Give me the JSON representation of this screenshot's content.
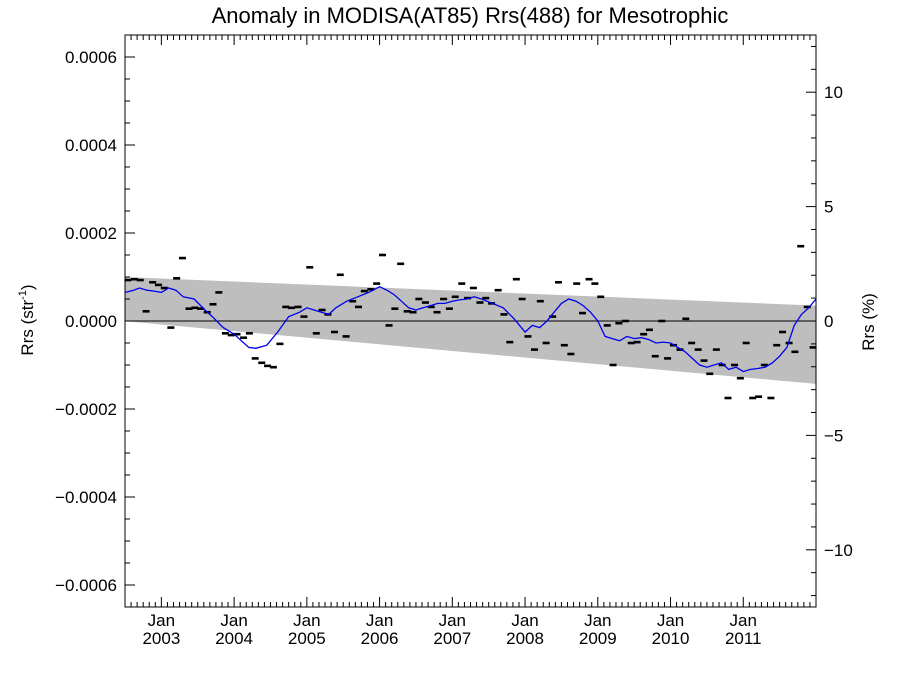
{
  "chart_data": {
    "type": "scatter",
    "title": "Anomaly in MODISA(AT85) Rrs(488) for Mesotrophic",
    "ylabel": {
      "base": "Rrs (str",
      "sup": "-1",
      "close": ")"
    },
    "ylabel_right": "Rrs (%)",
    "x_unit": "decimal year",
    "xlim": [
      2002.5,
      2012.0
    ],
    "ylim": [
      -0.00065,
      0.00065
    ],
    "ylim_right": [
      -12.5,
      12.5
    ],
    "y_ticks": [
      {
        "value": 0.0006,
        "label": "0.0006"
      },
      {
        "value": 0.0004,
        "label": "0.0004"
      },
      {
        "value": 0.0002,
        "label": "0.0002"
      },
      {
        "value": 0.0,
        "label": "0.0000"
      },
      {
        "value": -0.0002,
        "label": "−0.0002"
      },
      {
        "value": -0.0004,
        "label": "−0.0004"
      },
      {
        "value": -0.0006,
        "label": "−0.0006"
      }
    ],
    "y_ticks_right": [
      {
        "value": 10,
        "label": "10"
      },
      {
        "value": 5,
        "label": "5"
      },
      {
        "value": 0,
        "label": "0"
      },
      {
        "value": -5,
        "label": "−5"
      },
      {
        "value": -10,
        "label": "−10"
      }
    ],
    "x_ticks": [
      {
        "value": 2003.0,
        "line1": "Jan",
        "line2": "2003"
      },
      {
        "value": 2004.0,
        "line1": "Jan",
        "line2": "2004"
      },
      {
        "value": 2005.0,
        "line1": "Jan",
        "line2": "2005"
      },
      {
        "value": 2006.0,
        "line1": "Jan",
        "line2": "2006"
      },
      {
        "value": 2007.0,
        "line1": "Jan",
        "line2": "2007"
      },
      {
        "value": 2008.0,
        "line1": "Jan",
        "line2": "2008"
      },
      {
        "value": 2009.0,
        "line1": "Jan",
        "line2": "2009"
      },
      {
        "value": 2010.0,
        "line1": "Jan",
        "line2": "2010"
      },
      {
        "value": 2011.0,
        "line1": "Jan",
        "line2": "2011"
      }
    ],
    "band": {
      "x": [
        2002.5,
        2012.0
      ],
      "upper": [
        0.0001,
        3.5e-05
      ],
      "lower": [
        -5e-07,
        -0.000143
      ],
      "color": "#bebebe"
    },
    "zero_line": 0.0,
    "monthly_anomaly": {
      "x": [
        2002.54,
        2002.63,
        2002.71,
        2002.79,
        2002.88,
        2002.96,
        2003.04,
        2003.13,
        2003.21,
        2003.29,
        2003.38,
        2003.46,
        2003.54,
        2003.63,
        2003.71,
        2003.79,
        2003.88,
        2003.96,
        2004.04,
        2004.13,
        2004.21,
        2004.29,
        2004.38,
        2004.46,
        2004.54,
        2004.63,
        2004.71,
        2004.79,
        2004.88,
        2004.96,
        2005.04,
        2005.13,
        2005.21,
        2005.29,
        2005.38,
        2005.46,
        2005.54,
        2005.63,
        2005.71,
        2005.79,
        2005.88,
        2005.96,
        2006.04,
        2006.13,
        2006.21,
        2006.29,
        2006.38,
        2006.46,
        2006.54,
        2006.63,
        2006.71,
        2006.79,
        2006.88,
        2006.96,
        2007.04,
        2007.13,
        2007.21,
        2007.29,
        2007.38,
        2007.46,
        2007.54,
        2007.63,
        2007.71,
        2007.79,
        2007.88,
        2007.96,
        2008.04,
        2008.13,
        2008.21,
        2008.29,
        2008.38,
        2008.46,
        2008.54,
        2008.63,
        2008.71,
        2008.79,
        2008.88,
        2008.96,
        2009.04,
        2009.13,
        2009.21,
        2009.29,
        2009.38,
        2009.46,
        2009.54,
        2009.63,
        2009.71,
        2009.79,
        2009.88,
        2009.96,
        2010.04,
        2010.13,
        2010.21,
        2010.29,
        2010.38,
        2010.46,
        2010.54,
        2010.63,
        2010.71,
        2010.79,
        2010.88,
        2010.96,
        2011.04,
        2011.13,
        2011.21,
        2011.29,
        2011.38,
        2011.46,
        2011.54,
        2011.63,
        2011.71,
        2011.79,
        2011.88,
        2011.96
      ],
      "y": [
        9.3e-05,
        9.5e-05,
        9.3e-05,
        2.2e-05,
        8.8e-05,
        8.2e-05,
        7.5e-05,
        -1.5e-05,
        9.7e-05,
        0.000143,
        2.8e-05,
        3e-05,
        2.8e-05,
        2e-05,
        3.8e-05,
        6.5e-05,
        -2.8e-05,
        -3.2e-05,
        -3e-05,
        -3.8e-05,
        -2.8e-05,
        -8.5e-05,
        -9.5e-05,
        -0.000102,
        -0.000105,
        -5.2e-05,
        3.2e-05,
        3e-05,
        3.2e-05,
        1e-05,
        0.000122,
        -2.8e-05,
        2.5e-05,
        1.5e-05,
        -2.5e-05,
        0.000105,
        -3.5e-05,
        4.5e-05,
        3.2e-05,
        6.8e-05,
        7.2e-05,
        8.5e-05,
        0.00015,
        -1e-05,
        2.8e-05,
        0.00013,
        2.2e-05,
        2e-05,
        5e-05,
        4.2e-05,
        3.2e-05,
        2e-05,
        5e-05,
        2.8e-05,
        5.5e-05,
        8.5e-05,
        5.2e-05,
        7.5e-05,
        4.2e-05,
        5.2e-05,
        4e-05,
        7e-05,
        1.5e-05,
        -4.8e-05,
        9.5e-05,
        5e-05,
        -3.5e-05,
        -6.5e-05,
        4.5e-05,
        -5e-05,
        1e-05,
        8.8e-05,
        -5.5e-05,
        -7.5e-05,
        8.5e-05,
        1.8e-05,
        9.5e-05,
        8.5e-05,
        5.5e-05,
        -1e-05,
        -0.0001,
        -5e-06,
        0.0,
        -5e-05,
        -4.8e-05,
        -3e-05,
        -2e-05,
        -8e-05,
        0.0,
        -8.5e-05,
        -5.5e-05,
        -6.5e-05,
        5e-06,
        -5e-05,
        -6.5e-05,
        -9e-05,
        -0.00012,
        -6.5e-05,
        -0.0001,
        -0.000175,
        -0.0001,
        -0.00013,
        -5e-05,
        -0.000175,
        -0.000172,
        -0.0001,
        -0.000175,
        -5.5e-05,
        -2.5e-05,
        -5e-05,
        -7e-05,
        0.00017,
        3.2e-05,
        -6e-05
      ]
    },
    "running_mean": {
      "color": "#0000ee",
      "x": [
        2002.5,
        2002.62,
        2002.7,
        2002.8,
        2002.9,
        2003.0,
        2003.1,
        2003.2,
        2003.3,
        2003.45,
        2003.6,
        2003.7,
        2003.85,
        2004.0,
        2004.1,
        2004.2,
        2004.3,
        2004.45,
        2004.6,
        2004.75,
        2004.9,
        2005.0,
        2005.1,
        2005.2,
        2005.3,
        2005.4,
        2005.55,
        2005.7,
        2005.85,
        2006.0,
        2006.1,
        2006.2,
        2006.3,
        2006.4,
        2006.5,
        2006.6,
        2006.7,
        2006.8,
        2006.9,
        2007.0,
        2007.1,
        2007.2,
        2007.3,
        2007.4,
        2007.55,
        2007.7,
        2007.85,
        2008.0,
        2008.1,
        2008.2,
        2008.3,
        2008.4,
        2008.5,
        2008.6,
        2008.7,
        2008.8,
        2008.9,
        2009.0,
        2009.1,
        2009.2,
        2009.3,
        2009.4,
        2009.5,
        2009.6,
        2009.7,
        2009.8,
        2009.9,
        2010.0,
        2010.1,
        2010.2,
        2010.3,
        2010.4,
        2010.5,
        2010.6,
        2010.7,
        2010.8,
        2010.9,
        2011.0,
        2011.1,
        2011.2,
        2011.3,
        2011.4,
        2011.5,
        2011.6,
        2011.7,
        2011.8,
        2011.9,
        2012.0
      ],
      "y": [
        6.5e-05,
        7e-05,
        7.5e-05,
        7e-05,
        6.8e-05,
        6.5e-05,
        7.5e-05,
        7e-05,
        5.5e-05,
        5e-05,
        2.5e-05,
        1e-05,
        -1.5e-05,
        -3e-05,
        -4.5e-05,
        -6e-05,
        -6.2e-05,
        -5.5e-05,
        -2.5e-05,
        1e-05,
        2e-05,
        3e-05,
        2.5e-05,
        2e-05,
        1.5e-05,
        3e-05,
        4.5e-05,
        5.5e-05,
        6.5e-05,
        7.8e-05,
        7e-05,
        6e-05,
        4.5e-05,
        3e-05,
        2.5e-05,
        3e-05,
        3.5e-05,
        4e-05,
        4e-05,
        4.5e-05,
        4.8e-05,
        5e-05,
        5.5e-05,
        5e-05,
        4e-05,
        3e-05,
        5e-06,
        -2.5e-05,
        -1e-05,
        -1.5e-05,
        0.0,
        2e-05,
        4e-05,
        5e-05,
        4.5e-05,
        3.5e-05,
        2e-05,
        0.0,
        -3.5e-05,
        -4e-05,
        -4.5e-05,
        -3.5e-05,
        -4e-05,
        -3.8e-05,
        -4.2e-05,
        -5e-05,
        -4.8e-05,
        -5e-05,
        -6e-05,
        -7e-05,
        -8.5e-05,
        -0.0001,
        -0.000105,
        -0.0001,
        -9.5e-05,
        -0.00011,
        -0.000105,
        -0.000115,
        -0.00011,
        -0.000108,
        -0.000105,
        -9.5e-05,
        -8e-05,
        -6e-05,
        -1e-05,
        1.5e-05,
        3e-05,
        5e-05
      ]
    }
  }
}
